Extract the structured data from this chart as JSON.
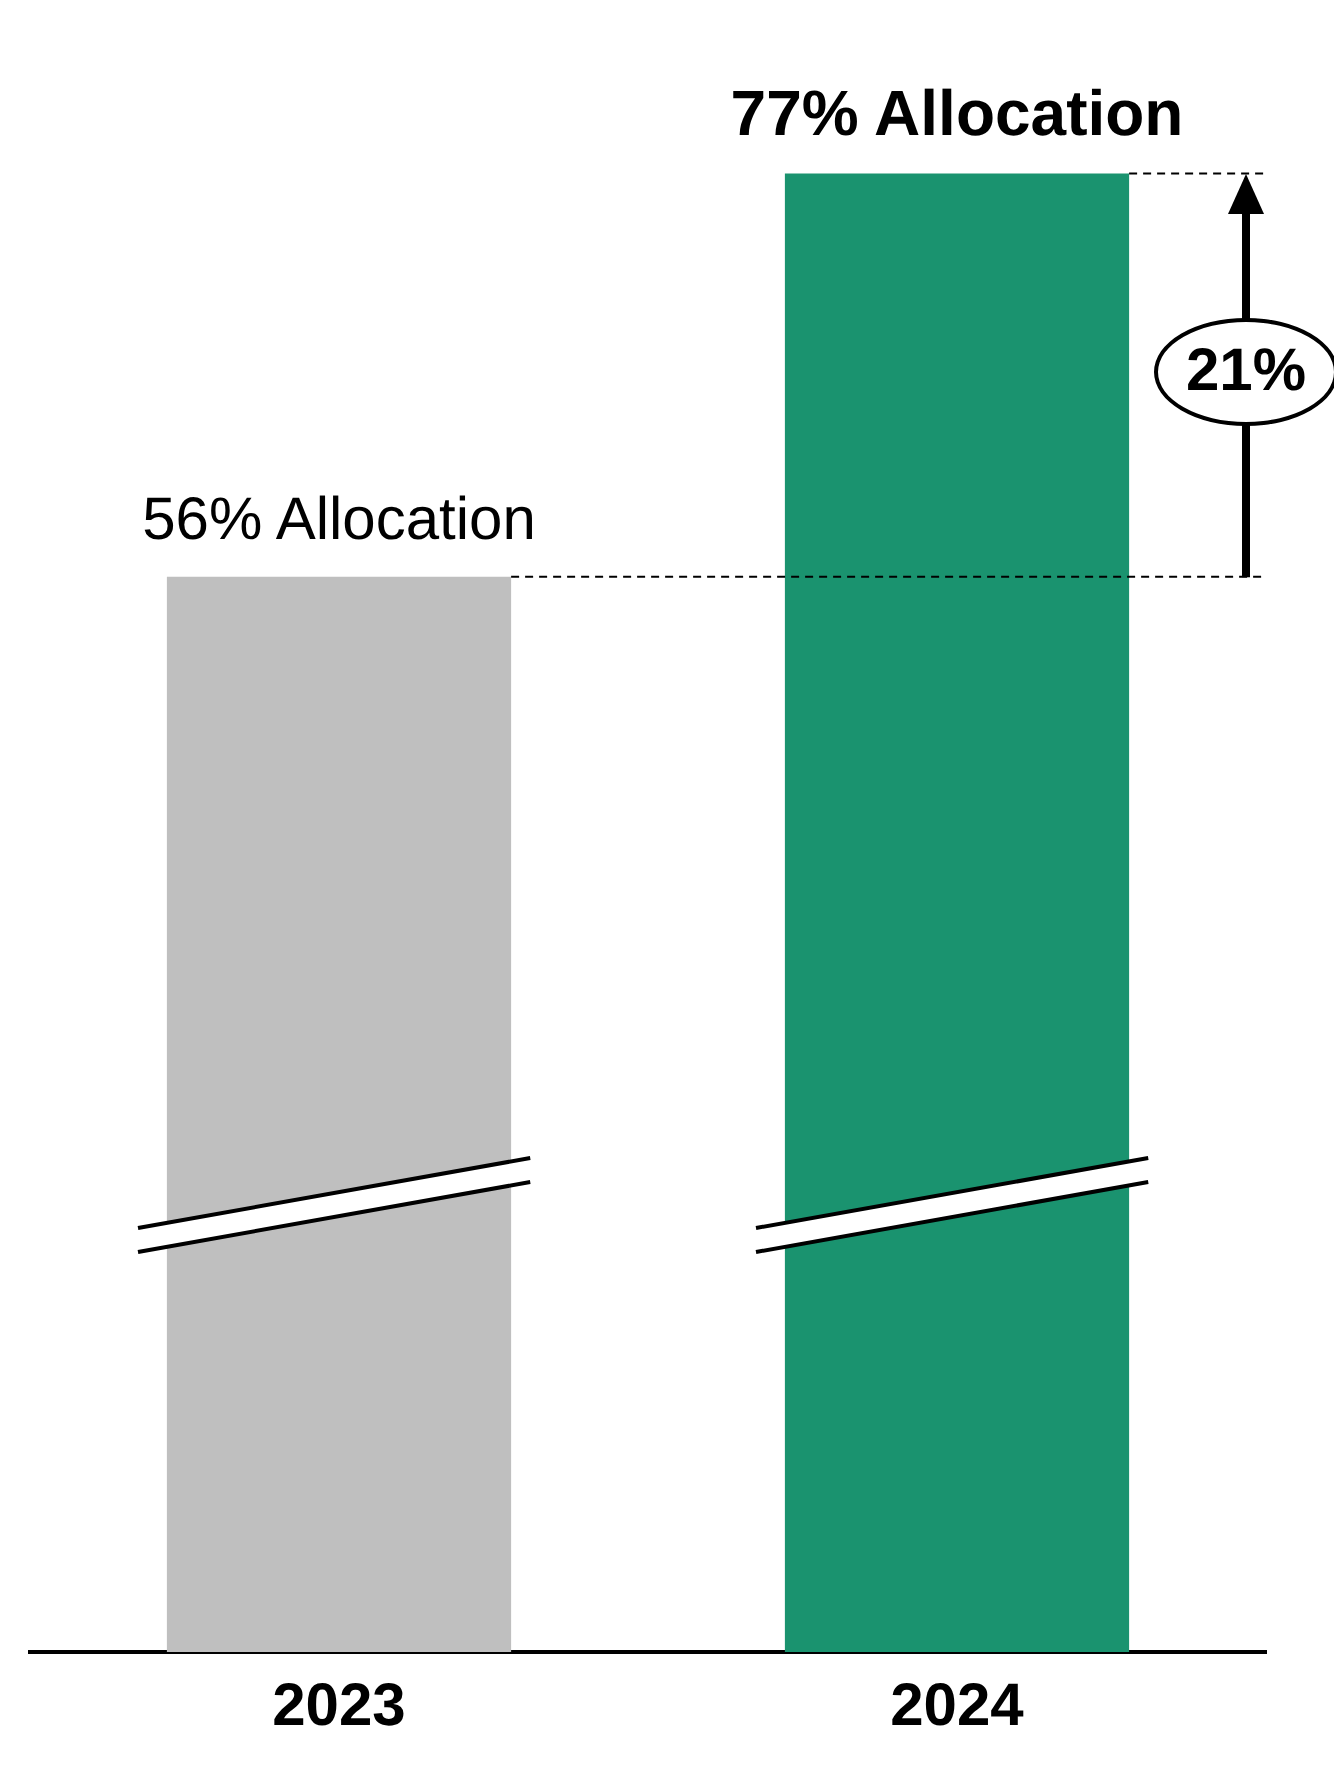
{
  "chart_data": {
    "type": "bar",
    "categories": [
      "2023",
      "2024"
    ],
    "values": [
      56,
      77
    ],
    "colors": [
      "#bfbfbf",
      "#1a936f"
    ],
    "value_labels": [
      "56% Allocation",
      "77% Allocation"
    ],
    "tick_labels": "x",
    "grid": false,
    "legend": false,
    "ref_lines": [
      {
        "axis": "y",
        "value": 56,
        "color": "#000000",
        "line_style": "dashed"
      },
      {
        "axis": "y",
        "value": 77,
        "color": "#000000",
        "line_style": "dashed"
      }
    ],
    "annotations": [
      "21%"
    ]
  }
}
